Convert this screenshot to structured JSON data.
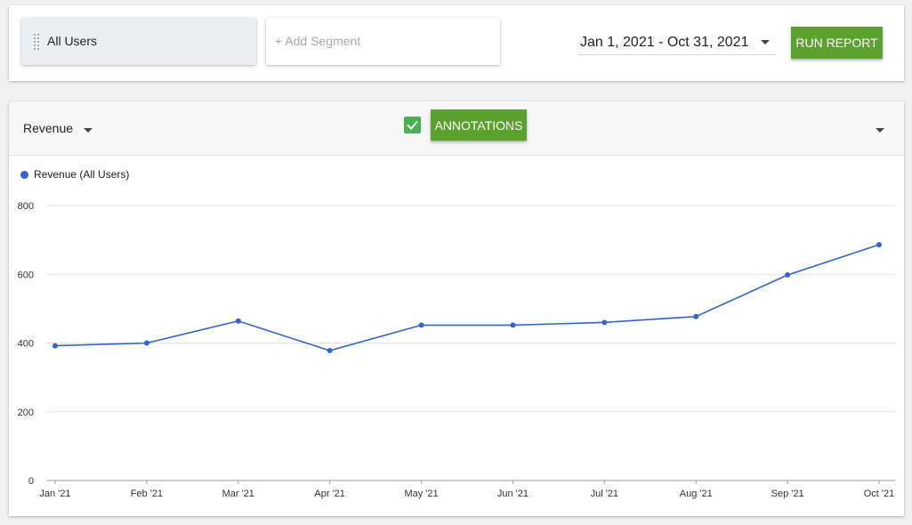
{
  "segments": {
    "active": {
      "label": "All Users"
    },
    "add": {
      "placeholder": "+ Add Segment"
    }
  },
  "date_range": {
    "label": "Jan 1, 2021 - Oct 31, 2021"
  },
  "run_report": {
    "label": "RUN REPORT"
  },
  "chart_header": {
    "metric": "Revenue",
    "annotations_checked": true,
    "annotations_label": "ANNOTATIONS"
  },
  "colors": {
    "accent_green": "#5aa12d",
    "checkbox_green": "#4caf50",
    "series_blue": "#3366cc"
  },
  "icons": [
    "drag-handle-icon",
    "caret-down-icon",
    "check-icon"
  ],
  "chart_data": {
    "type": "line",
    "categories": [
      "Jan '21",
      "Feb '21",
      "Mar '21",
      "Apr '21",
      "May '21",
      "Jun '21",
      "Jul '21",
      "Aug '21",
      "Sep '21",
      "Oct '21"
    ],
    "series": [
      {
        "name": "Revenue (All Users)",
        "values": [
          392,
          400,
          464,
          378,
          452,
          452,
          460,
          477,
          598,
          686
        ]
      }
    ],
    "ylim": [
      0,
      800
    ],
    "yticks": [
      0,
      200,
      400,
      600,
      800
    ],
    "grid": true,
    "legend": "top-left",
    "title": "",
    "xlabel": "",
    "ylabel": ""
  }
}
